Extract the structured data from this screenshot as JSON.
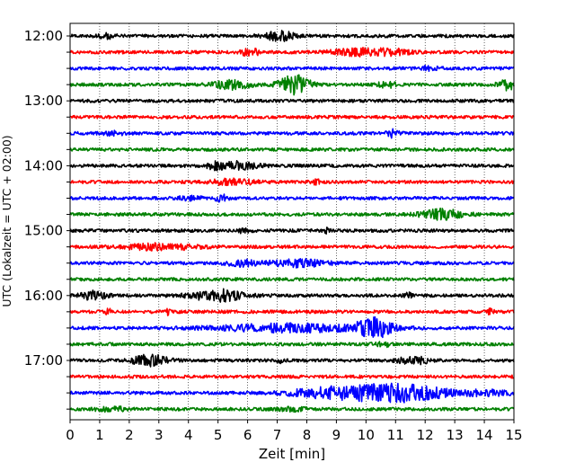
{
  "chart_data": {
    "type": "line",
    "title": "",
    "xlabel": "Zeit  [min]",
    "ylabel": "UTC (Lokalzeit = UTC + 02:00)",
    "xlim": [
      0,
      15
    ],
    "x_ticks": [
      "0",
      "1",
      "2",
      "3",
      "4",
      "5",
      "6",
      "7",
      "8",
      "9",
      "10",
      "11",
      "12",
      "13",
      "14",
      "15"
    ],
    "y_tick_labels": [
      "12:00",
      "13:00",
      "14:00",
      "15:00",
      "16:00",
      "17:00"
    ],
    "grid": "vertical dotted at each minute",
    "line_interval_minutes": 15,
    "line_color_cycle": [
      "#000000",
      "#ff0000",
      "#0000ff",
      "#008000"
    ],
    "traces": [
      {
        "start": "12:00",
        "events": [
          {
            "t": 7.1,
            "amp": 0.6,
            "dur": 0.5
          },
          {
            "t": 1.2,
            "amp": 0.3,
            "dur": 0.3
          }
        ]
      },
      {
        "start": "12:15",
        "events": [
          {
            "t": 6.1,
            "amp": 0.55,
            "dur": 0.3
          },
          {
            "t": 9.8,
            "amp": 0.45,
            "dur": 1.0
          },
          {
            "t": 11.0,
            "amp": 0.3,
            "dur": 0.5
          }
        ]
      },
      {
        "start": "12:30",
        "events": [
          {
            "t": 12.2,
            "amp": 0.3,
            "dur": 0.3
          }
        ]
      },
      {
        "start": "12:45",
        "events": [
          {
            "t": 5.5,
            "amp": 0.6,
            "dur": 0.6
          },
          {
            "t": 7.6,
            "amp": 1.3,
            "dur": 0.5
          },
          {
            "t": 10.7,
            "amp": 0.4,
            "dur": 0.3
          },
          {
            "t": 14.8,
            "amp": 0.7,
            "dur": 0.3
          }
        ]
      },
      {
        "start": "13:00",
        "events": []
      },
      {
        "start": "13:15",
        "events": []
      },
      {
        "start": "13:30",
        "events": [
          {
            "t": 10.9,
            "amp": 0.5,
            "dur": 0.2
          },
          {
            "t": 1.5,
            "amp": 0.2,
            "dur": 0.4
          }
        ]
      },
      {
        "start": "13:45",
        "events": []
      },
      {
        "start": "14:00",
        "events": [
          {
            "t": 5.6,
            "amp": 0.5,
            "dur": 0.7
          },
          {
            "t": 4.9,
            "amp": 0.3,
            "dur": 0.3
          }
        ]
      },
      {
        "start": "14:15",
        "events": [
          {
            "t": 5.5,
            "amp": 0.35,
            "dur": 0.8
          },
          {
            "t": 8.3,
            "amp": 0.25,
            "dur": 0.2
          }
        ]
      },
      {
        "start": "14:30",
        "events": [
          {
            "t": 5.1,
            "amp": 0.45,
            "dur": 0.2
          },
          {
            "t": 4.0,
            "amp": 0.25,
            "dur": 0.4
          }
        ]
      },
      {
        "start": "14:45",
        "events": [
          {
            "t": 12.6,
            "amp": 0.65,
            "dur": 0.7
          }
        ]
      },
      {
        "start": "15:00",
        "events": [
          {
            "t": 8.7,
            "amp": 0.4,
            "dur": 0.1
          },
          {
            "t": 5.9,
            "amp": 0.3,
            "dur": 0.2
          }
        ]
      },
      {
        "start": "15:15",
        "events": [
          {
            "t": 3.1,
            "amp": 0.4,
            "dur": 1.2
          }
        ]
      },
      {
        "start": "15:30",
        "events": [
          {
            "t": 5.8,
            "amp": 0.4,
            "dur": 0.5
          },
          {
            "t": 7.7,
            "amp": 0.45,
            "dur": 1.0
          }
        ]
      },
      {
        "start": "15:45",
        "events": []
      },
      {
        "start": "16:00",
        "events": [
          {
            "t": 0.8,
            "amp": 0.6,
            "dur": 0.4
          },
          {
            "t": 5.0,
            "amp": 0.75,
            "dur": 0.9
          },
          {
            "t": 11.4,
            "amp": 0.3,
            "dur": 0.2
          }
        ]
      },
      {
        "start": "16:15",
        "events": [
          {
            "t": 1.3,
            "amp": 0.45,
            "dur": 0.1
          },
          {
            "t": 3.3,
            "amp": 0.4,
            "dur": 0.1
          },
          {
            "t": 14.2,
            "amp": 0.4,
            "dur": 0.1
          }
        ]
      },
      {
        "start": "16:30",
        "events": [
          {
            "t": 7.5,
            "amp": 0.5,
            "dur": 2.5
          },
          {
            "t": 10.3,
            "amp": 1.2,
            "dur": 0.6
          }
        ]
      },
      {
        "start": "16:45",
        "events": [
          {
            "t": 10.6,
            "amp": 0.3,
            "dur": 0.3
          }
        ]
      },
      {
        "start": "17:00",
        "events": [
          {
            "t": 2.7,
            "amp": 0.7,
            "dur": 0.6
          },
          {
            "t": 11.6,
            "amp": 0.55,
            "dur": 0.5
          },
          {
            "t": 7.1,
            "amp": 0.3,
            "dur": 0.1
          }
        ]
      },
      {
        "start": "17:15",
        "events": []
      },
      {
        "start": "17:30",
        "events": [
          {
            "t": 10.9,
            "amp": 1.2,
            "dur": 1.8
          },
          {
            "t": 8.5,
            "amp": 0.5,
            "dur": 1.2
          },
          {
            "t": 14.2,
            "amp": 0.3,
            "dur": 0.8
          }
        ]
      },
      {
        "start": "17:45",
        "events": [
          {
            "t": 1.4,
            "amp": 0.3,
            "dur": 0.5
          },
          {
            "t": 7.5,
            "amp": 0.2,
            "dur": 0.5
          }
        ]
      }
    ]
  }
}
